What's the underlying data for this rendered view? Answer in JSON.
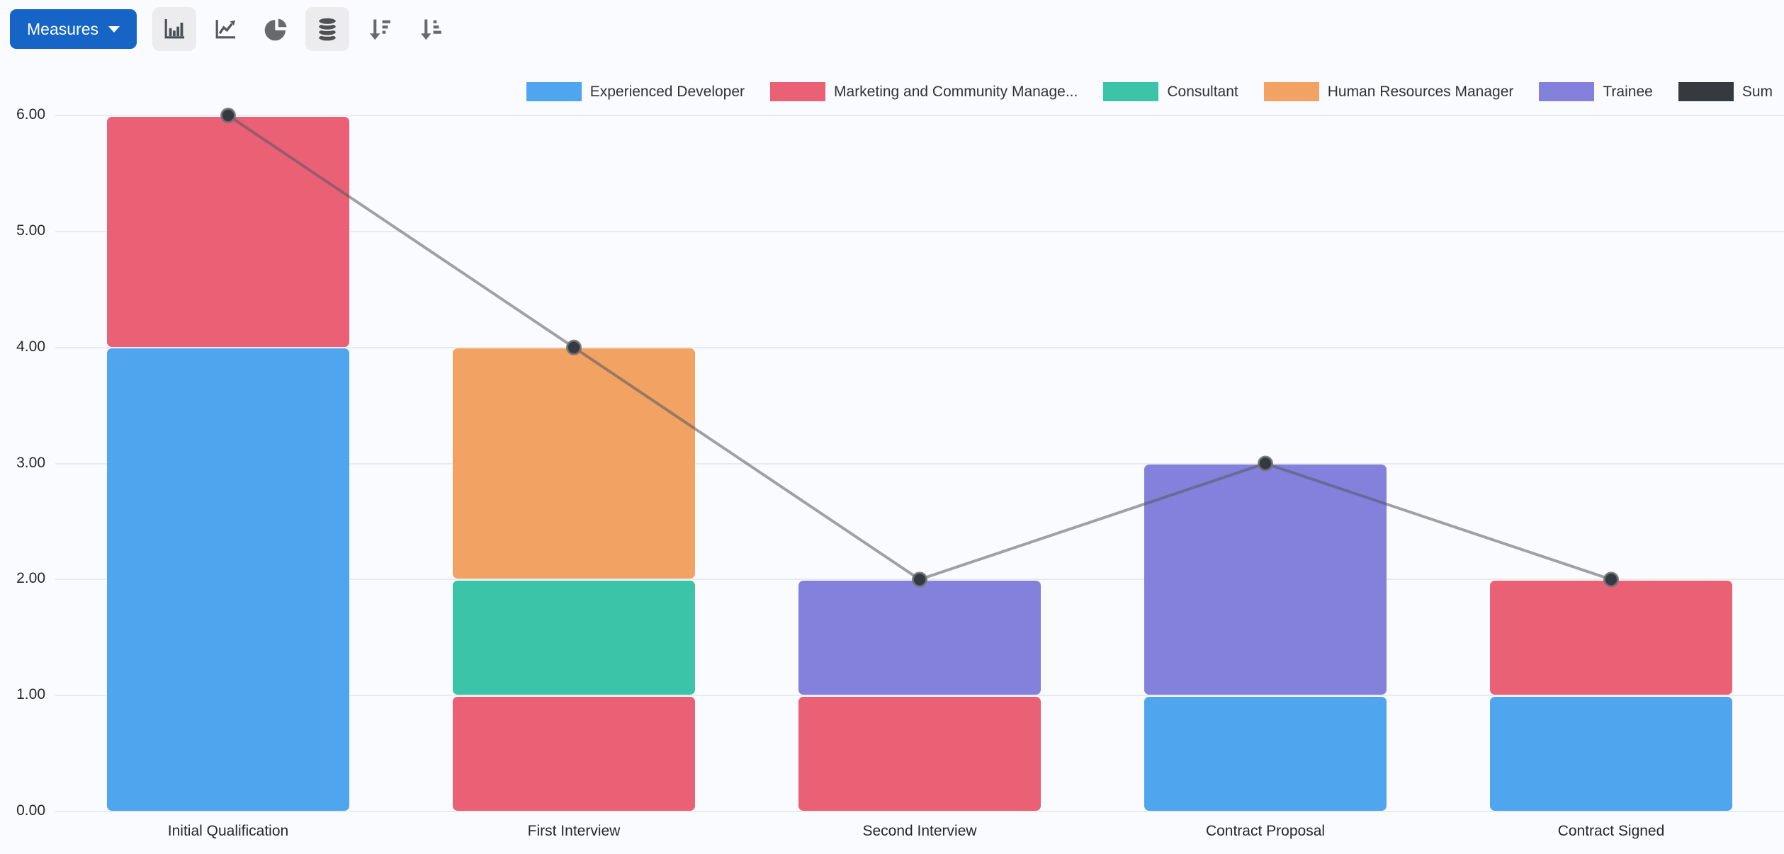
{
  "toolbar": {
    "measures_label": "Measures",
    "view_buttons": [
      {
        "id": "bar-chart",
        "active": true
      },
      {
        "id": "line-chart",
        "active": false
      },
      {
        "id": "pie-chart",
        "active": false
      },
      {
        "id": "stacked-toggle",
        "active": true
      },
      {
        "id": "sort-descending",
        "active": false
      },
      {
        "id": "sort-ascending",
        "active": false
      }
    ]
  },
  "theme": {
    "accent_color": "#1665c6",
    "background": "#fafbfe",
    "grid_color": "#e8eaee",
    "icon_color": "#55595e",
    "icon_active_bg": "#ececee",
    "text_color": "#23282d"
  },
  "chart_data": {
    "type": "bar",
    "stacked": true,
    "categories": [
      "Initial Qualification",
      "First Interview",
      "Second Interview",
      "Contract Proposal",
      "Contract Signed"
    ],
    "series": [
      {
        "name": "Experienced Developer",
        "color": "#4FA6EE",
        "values": [
          4,
          0,
          0,
          1,
          1
        ]
      },
      {
        "name": "Marketing and Community Manage...",
        "color": "#EA6175",
        "values": [
          2,
          1,
          1,
          0,
          1
        ]
      },
      {
        "name": "Consultant",
        "color": "#3BC4A7",
        "values": [
          0,
          1,
          0,
          0,
          0
        ]
      },
      {
        "name": "Human Resources Manager",
        "color": "#F2A263",
        "values": [
          0,
          2,
          0,
          0,
          0
        ]
      },
      {
        "name": "Trainee",
        "color": "#8481DD",
        "values": [
          0,
          0,
          1,
          2,
          0
        ]
      }
    ],
    "line_series": {
      "name": "Sum",
      "color": "#343A40",
      "line_color": "rgba(82,88,94,0.55)",
      "values": [
        6,
        4,
        2,
        3,
        2
      ]
    },
    "ylim": [
      0,
      6
    ],
    "ytick_labels": [
      "0.00",
      "1.00",
      "2.00",
      "3.00",
      "4.00",
      "5.00",
      "6.00"
    ],
    "grid": true,
    "legend_position": "top-right",
    "xlabel": "",
    "ylabel": ""
  }
}
